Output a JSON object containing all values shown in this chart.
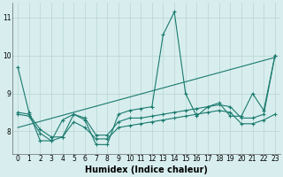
{
  "xlabel": "Humidex (Indice chaleur)",
  "x": [
    0,
    1,
    2,
    3,
    4,
    5,
    6,
    7,
    8,
    9,
    10,
    11,
    12,
    13,
    14,
    15,
    16,
    17,
    18,
    19,
    20,
    21,
    22,
    23
  ],
  "series1": [
    9.7,
    8.5,
    7.75,
    7.75,
    8.3,
    8.45,
    8.3,
    7.65,
    7.65,
    8.45,
    8.55,
    8.6,
    8.65,
    10.55,
    11.15,
    9.0,
    8.4,
    8.65,
    8.75,
    8.4,
    8.4,
    9.0,
    8.55,
    10.0
  ],
  "series2": [
    8.5,
    8.45,
    8.05,
    7.85,
    7.85,
    8.45,
    8.35,
    7.9,
    7.9,
    8.25,
    8.35,
    8.35,
    8.4,
    8.45,
    8.5,
    8.55,
    8.6,
    8.65,
    8.7,
    8.65,
    8.35,
    8.35,
    8.45,
    10.0
  ],
  "series3": [
    8.45,
    8.4,
    7.95,
    7.75,
    7.85,
    8.25,
    8.1,
    7.8,
    7.8,
    8.1,
    8.15,
    8.2,
    8.25,
    8.3,
    8.35,
    8.4,
    8.45,
    8.5,
    8.55,
    8.5,
    8.2,
    8.2,
    8.3,
    8.45
  ],
  "series4_x": [
    0,
    23
  ],
  "series4_y": [
    8.1,
    9.95
  ],
  "ylim": [
    7.4,
    11.4
  ],
  "xlim": [
    -0.5,
    23.5
  ],
  "yticks": [
    8,
    9,
    10,
    11
  ],
  "xticks": [
    0,
    1,
    2,
    3,
    4,
    5,
    6,
    7,
    8,
    9,
    10,
    11,
    12,
    13,
    14,
    15,
    16,
    17,
    18,
    19,
    20,
    21,
    22,
    23
  ],
  "line_color": "#1a7a6e",
  "bg_color": "#d8eeee",
  "grid_color": "#b8d4d4",
  "marker": "+",
  "markersize": 3,
  "linewidth": 0.8,
  "tick_fontsize": 5.5,
  "xlabel_fontsize": 7.0
}
